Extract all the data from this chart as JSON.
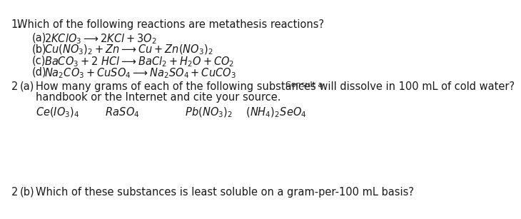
{
  "background_color": "#ffffff",
  "title_num": "1.",
  "title_text": "  Which of the following reactions are metathesis reactions?",
  "reactions": [
    {
      "label": "(a)",
      "text": "$2KClO_3 \\longrightarrow 2KCl + 3O_2$"
    },
    {
      "label": "(b)",
      "text": "$Cu(NO_3)_2 + Zn \\longrightarrow Cu + Zn(NO_3)_2$"
    },
    {
      "label": "(c)",
      "text": "$BaCO_3 + 2\\ HCl \\longrightarrow BaCl_2 + H_2O + CO_2$"
    },
    {
      "label": "(d)",
      "text": "$Na_2CO_3 + CuSO_4 \\longrightarrow Na_2SO_4 + CuCO_3$"
    }
  ],
  "q2a_num": "2",
  "q2a_label": "(a)",
  "q2a_line1": "How many grams of each of the following substances will dissolve in 100 mL of cold water?",
  "q2a_consult": "Consult a",
  "q2a_line2": "handbook or the Internet and cite your source.",
  "compounds": "$Ce(IO_3)_4$          $RaSO_4$               $Pb(NO_3)_2$    $(NH_4)_2SeO_4$",
  "q2b_num": "2",
  "q2b_label": "(b)",
  "q2b_text": "Which of these substances is least soluble on a gram-per-100 mL basis?",
  "font_size_main": 10.5,
  "font_size_small": 8.5,
  "text_color": "#1a1a1a"
}
